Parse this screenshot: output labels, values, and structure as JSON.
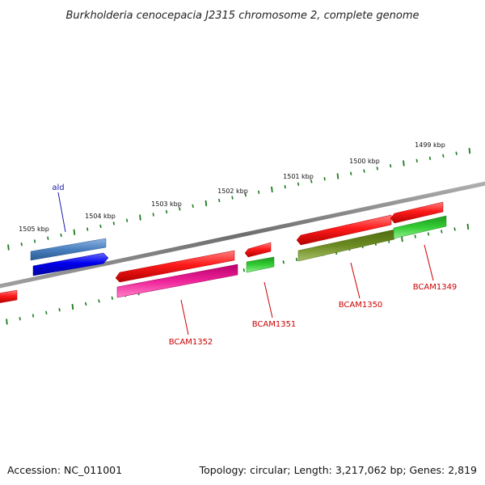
{
  "title": "Burkholderia cenocepacia J2315 chromosome 2, complete genome",
  "tick_labels": [
    "1505 kbp",
    "1504 kbp",
    "1503 kbp",
    "1502 kbp",
    "1501 kbp",
    "1500 kbp",
    "1499 kbp"
  ],
  "gene_labels": {
    "ald": "ald",
    "bcam1352": "BCAM1352",
    "bcam1351": "BCAM1351",
    "bcam1350": "BCAM1350",
    "bcam1349": "BCAM1349"
  },
  "footer": {
    "accession": "Accession: NC_011001",
    "stats": "Topology: circular; Length: 3,217,062 bp; Genes: 2,819"
  },
  "colors": {
    "backbone": "#8a8a8a",
    "tick": "#1a7a1a",
    "cds_red": "#ee1111",
    "gene_blue": "#0000ee",
    "gene_steel": "#4a80c0",
    "gene_magenta": "#ee2299",
    "gene_green": "#33cc33",
    "gene_olive": "#6b8a22",
    "label_blue": "#1a1aaa",
    "label_red": "#cc0000"
  }
}
